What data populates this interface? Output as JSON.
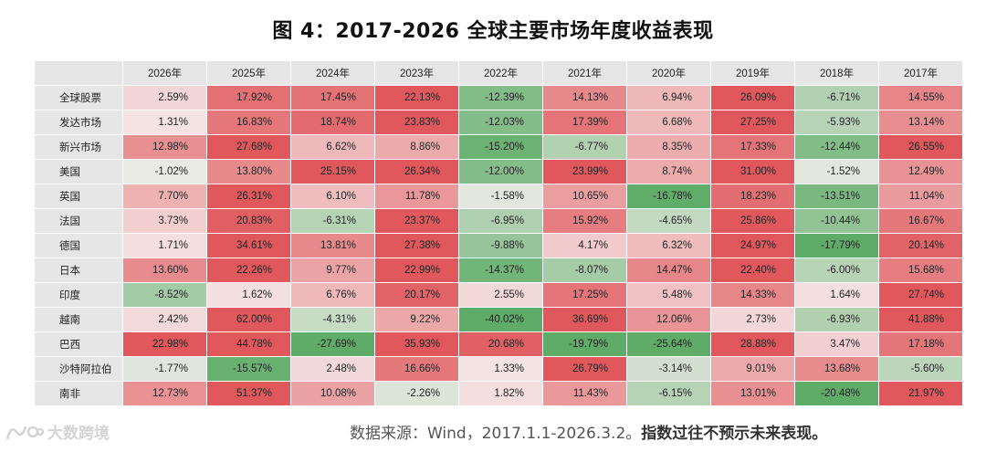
{
  "title": "图 4：2017-2026 全球主要市场年度收益表现",
  "source": "数据来源：Wind，2017.1.1-2026.3.2。",
  "disclaimer": "指数过往不预示未来表现。",
  "watermark_text": "大数跨境",
  "colors": {
    "positive": "#e0585c",
    "negative": "#5eac67",
    "neutral": "#f6f0f0",
    "header_bg": "#e6e6e6"
  },
  "chart_data": {
    "type": "heatmap",
    "title": "图 4：2017-2026 全球主要市场年度收益表现",
    "columns": [
      "2026年",
      "2025年",
      "2024年",
      "2023年",
      "2022年",
      "2021年",
      "2020年",
      "2019年",
      "2018年",
      "2017年"
    ],
    "rows": [
      {
        "label": "全球股票",
        "values": [
          2.59,
          17.92,
          17.45,
          22.13,
          -12.39,
          14.13,
          6.94,
          26.09,
          -6.71,
          14.55
        ]
      },
      {
        "label": "发达市场",
        "values": [
          1.31,
          16.83,
          18.74,
          23.83,
          -12.03,
          17.39,
          6.68,
          27.25,
          -5.93,
          13.14
        ]
      },
      {
        "label": "新兴市场",
        "values": [
          12.98,
          27.68,
          6.62,
          8.86,
          -15.2,
          -6.77,
          8.35,
          17.33,
          -12.44,
          26.55
        ]
      },
      {
        "label": "美国",
        "values": [
          -1.02,
          13.8,
          25.15,
          26.34,
          -12.0,
          23.99,
          8.74,
          31.0,
          -1.52,
          12.49
        ]
      },
      {
        "label": "英国",
        "values": [
          7.7,
          26.31,
          6.1,
          11.78,
          -1.58,
          10.65,
          -16.78,
          18.23,
          -13.51,
          11.04
        ]
      },
      {
        "label": "法国",
        "values": [
          3.73,
          20.83,
          -6.31,
          23.37,
          -6.95,
          15.92,
          -4.65,
          25.86,
          -10.44,
          16.67
        ]
      },
      {
        "label": "德国",
        "values": [
          1.71,
          34.61,
          13.81,
          27.38,
          -9.88,
          4.17,
          6.32,
          24.97,
          -17.79,
          20.14
        ]
      },
      {
        "label": "日本",
        "values": [
          13.6,
          22.26,
          9.77,
          22.99,
          -14.37,
          -8.07,
          14.47,
          22.4,
          -6.0,
          15.68
        ]
      },
      {
        "label": "印度",
        "values": [
          -8.52,
          1.62,
          6.76,
          20.17,
          2.55,
          17.25,
          5.48,
          14.33,
          1.64,
          27.74
        ]
      },
      {
        "label": "越南",
        "values": [
          2.42,
          62.0,
          -4.31,
          9.22,
          -40.02,
          36.69,
          12.06,
          2.73,
          -6.93,
          41.88
        ]
      },
      {
        "label": "巴西",
        "values": [
          22.98,
          44.78,
          -27.69,
          35.93,
          20.68,
          -19.79,
          -25.64,
          28.88,
          3.47,
          17.18
        ]
      },
      {
        "label": "沙特阿拉伯",
        "values": [
          -1.77,
          -15.57,
          2.48,
          16.66,
          1.33,
          26.79,
          -3.14,
          9.01,
          13.68,
          -5.6
        ]
      },
      {
        "label": "南非",
        "values": [
          12.73,
          51.37,
          10.08,
          -2.26,
          1.82,
          11.43,
          -6.15,
          13.01,
          -20.48,
          21.97
        ]
      }
    ],
    "unit": "%"
  }
}
